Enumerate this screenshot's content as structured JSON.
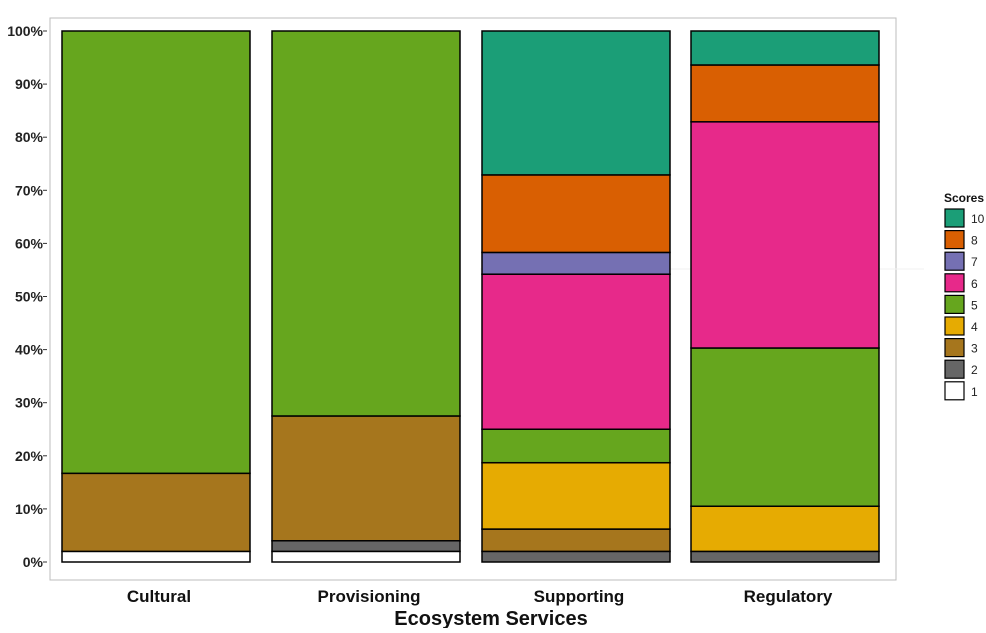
{
  "chart_data": {
    "type": "bar",
    "stacked": true,
    "percent": true,
    "categories": [
      "Cultural",
      "Provisioning",
      "Supporting",
      "Regulatory"
    ],
    "xlabel": "Ecosystem Services",
    "ylabel": "",
    "ylim": [
      0,
      100
    ],
    "y_ticks": [
      "0%",
      "10%",
      "20%",
      "30%",
      "40%",
      "50%",
      "60%",
      "70%",
      "80%",
      "90%",
      "100%"
    ],
    "legend": {
      "title": "Scores",
      "placement": "right"
    },
    "series": [
      {
        "name": "1",
        "color": "#ffffff",
        "values": [
          2,
          2,
          0,
          0
        ]
      },
      {
        "name": "2",
        "color": "#666666",
        "values": [
          0,
          2,
          2,
          2
        ]
      },
      {
        "name": "3",
        "color": "#a6761d",
        "values": [
          14.7,
          23.5,
          4.2,
          0
        ]
      },
      {
        "name": "4",
        "color": "#e6ab02",
        "values": [
          0,
          0,
          12.5,
          8.5
        ]
      },
      {
        "name": "5",
        "color": "#66a61e",
        "values": [
          83.3,
          72.5,
          6.3,
          29.8
        ]
      },
      {
        "name": "6",
        "color": "#e7298a",
        "values": [
          0,
          0,
          29.2,
          42.6
        ]
      },
      {
        "name": "7",
        "color": "#7570b3",
        "values": [
          0,
          0,
          4.1,
          0
        ]
      },
      {
        "name": "8",
        "color": "#d95f02",
        "values": [
          0,
          0,
          14.6,
          10.7
        ]
      },
      {
        "name": "10",
        "color": "#1b9e77",
        "values": [
          0,
          0,
          27.1,
          6.4
        ]
      }
    ]
  }
}
